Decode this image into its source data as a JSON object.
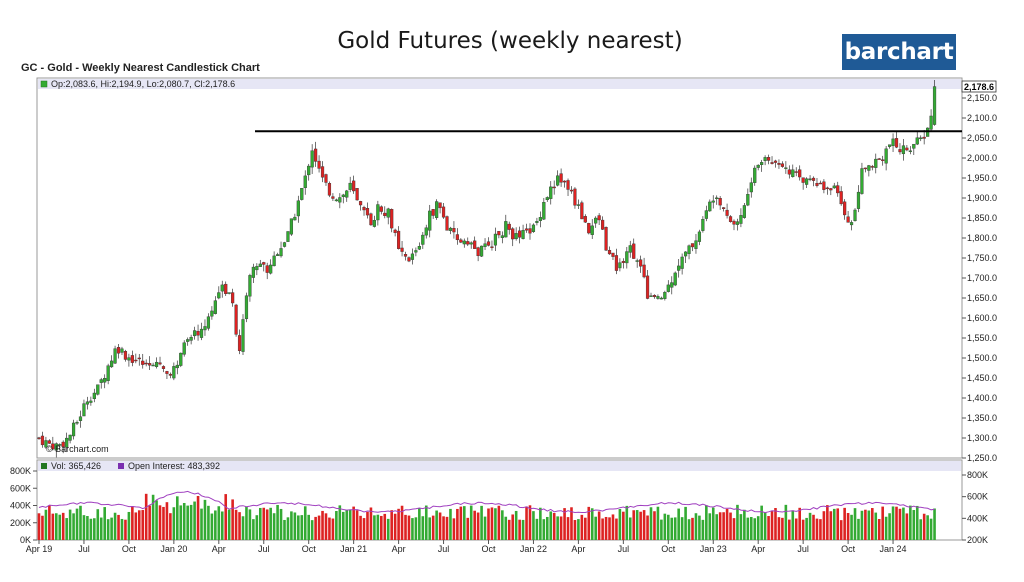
{
  "slide_title": "Gold Futures (weekly nearest)",
  "brand": "barchart",
  "chart_data": {
    "type": "candlestick",
    "title": "GC - Gold - Weekly Nearest Candlestick Chart",
    "legend_ohlc": "Op:2,083.6, Hi:2,194.9, Lo:2,080.7, Cl:2,178.6",
    "last_price_label": "2,178.6",
    "watermark": "© Barchart.com",
    "price_axis": {
      "min": 1250,
      "max": 2200,
      "ticks": [
        "2,150.0",
        "2,100.0",
        "2,050.0",
        "2,000.0",
        "1,950.0",
        "1,900.0",
        "1,850.0",
        "1,800.0",
        "1,750.0",
        "1,700.0",
        "1,650.0",
        "1,600.0",
        "1,550.0",
        "1,500.0",
        "1,450.0",
        "1,400.0",
        "1,350.0",
        "1,300.0",
        "1,250.0"
      ]
    },
    "resistance_level": 2067,
    "price_anchors": [
      [
        0,
        1300
      ],
      [
        4,
        1285
      ],
      [
        8,
        1280
      ],
      [
        12,
        1300
      ],
      [
        16,
        1345
      ],
      [
        20,
        1400
      ],
      [
        24,
        1420
      ],
      [
        28,
        1475
      ],
      [
        32,
        1530
      ],
      [
        36,
        1505
      ],
      [
        40,
        1495
      ],
      [
        44,
        1480
      ],
      [
        48,
        1495
      ],
      [
        52,
        1465
      ],
      [
        56,
        1470
      ],
      [
        60,
        1530
      ],
      [
        64,
        1560
      ],
      [
        68,
        1580
      ],
      [
        72,
        1640
      ],
      [
        76,
        1680
      ],
      [
        80,
        1640
      ],
      [
        82,
        1500
      ],
      [
        86,
        1700
      ],
      [
        90,
        1740
      ],
      [
        94,
        1720
      ],
      [
        98,
        1770
      ],
      [
        102,
        1800
      ],
      [
        106,
        1880
      ],
      [
        110,
        1960
      ],
      [
        112,
        2030
      ],
      [
        116,
        1950
      ],
      [
        120,
        1910
      ],
      [
        124,
        1900
      ],
      [
        128,
        1930
      ],
      [
        132,
        1870
      ],
      [
        136,
        1840
      ],
      [
        140,
        1880
      ],
      [
        144,
        1860
      ],
      [
        148,
        1760
      ],
      [
        152,
        1740
      ],
      [
        156,
        1780
      ],
      [
        160,
        1850
      ],
      [
        164,
        1890
      ],
      [
        168,
        1820
      ],
      [
        172,
        1790
      ],
      [
        176,
        1800
      ],
      [
        180,
        1760
      ],
      [
        184,
        1780
      ],
      [
        188,
        1800
      ],
      [
        192,
        1830
      ],
      [
        196,
        1800
      ],
      [
        200,
        1810
      ],
      [
        204,
        1830
      ],
      [
        208,
        1900
      ],
      [
        212,
        1940
      ],
      [
        214,
        1950
      ],
      [
        218,
        1920
      ],
      [
        222,
        1870
      ],
      [
        226,
        1820
      ],
      [
        230,
        1850
      ],
      [
        234,
        1760
      ],
      [
        238,
        1720
      ],
      [
        242,
        1780
      ],
      [
        246,
        1750
      ],
      [
        250,
        1660
      ],
      [
        254,
        1640
      ],
      [
        258,
        1670
      ],
      [
        262,
        1730
      ],
      [
        266,
        1760
      ],
      [
        270,
        1800
      ],
      [
        274,
        1860
      ],
      [
        278,
        1920
      ],
      [
        282,
        1870
      ],
      [
        286,
        1830
      ],
      [
        290,
        1880
      ],
      [
        294,
        1970
      ],
      [
        298,
        2000
      ],
      [
        302,
        1990
      ],
      [
        306,
        1990
      ],
      [
        310,
        1960
      ],
      [
        314,
        1940
      ],
      [
        318,
        1960
      ],
      [
        322,
        1920
      ],
      [
        326,
        1930
      ],
      [
        330,
        1880
      ],
      [
        334,
        1830
      ],
      [
        338,
        1960
      ],
      [
        342,
        1990
      ],
      [
        346,
        2000
      ],
      [
        350,
        2040
      ],
      [
        354,
        2020
      ],
      [
        358,
        2030
      ],
      [
        362,
        2040
      ],
      [
        366,
        2080
      ],
      [
        368,
        2178.6
      ]
    ],
    "volume_axis": {
      "ticks": [
        "800K",
        "600K",
        "400K",
        "200K",
        "0K"
      ]
    },
    "open_interest_axis": {
      "ticks": [
        "800K",
        "600K",
        "400K",
        "200K"
      ]
    },
    "volume_legend": "Vol: 365,426",
    "open_interest_legend": "Open Interest: 483,392",
    "x_tick_labels": [
      "Apr 19",
      "Jul",
      "Oct",
      "Jan 20",
      "Apr",
      "Jul",
      "Oct",
      "Jan 21",
      "Apr",
      "Jul",
      "Oct",
      "Jan 22",
      "Apr",
      "Jul",
      "Oct",
      "Jan 23",
      "Apr",
      "Jul",
      "Oct",
      "Jan 24"
    ],
    "x_tick_weeks": [
      0,
      13,
      26,
      39,
      52,
      65,
      78,
      91,
      104,
      117,
      130,
      143,
      156,
      169,
      182,
      195,
      208,
      221,
      234,
      247
    ],
    "colors": {
      "up": "#33aa33",
      "down": "#dd2222",
      "oi": "#a040c0",
      "legend_bg": "#e6e6f5",
      "resistance": "#000000"
    }
  }
}
